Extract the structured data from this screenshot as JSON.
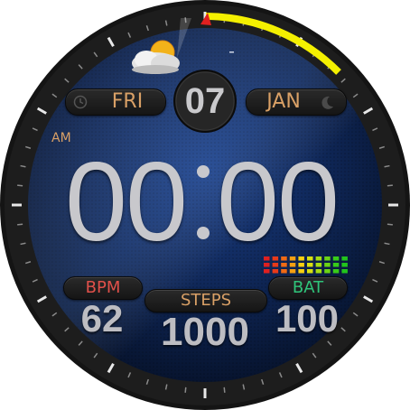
{
  "date": {
    "weekday": "FRI",
    "day": "07",
    "month": "JAN"
  },
  "time": {
    "ampm": "AM",
    "hours": "00",
    "minutes": "00"
  },
  "metrics": {
    "bpm": {
      "label": "BPM",
      "value": "62"
    },
    "steps": {
      "label": "STEPS",
      "value": "1000"
    },
    "battery": {
      "label": "BAT",
      "value": "100"
    }
  },
  "icons": {
    "weather": "partly-cloudy-icon",
    "weekday": "clock-icon",
    "month": "moon-icon"
  },
  "colors": {
    "accent": "#d9a066",
    "bpm": "#e0504a",
    "battery": "#2fc47a",
    "progress_arc": "#f4f000",
    "marker": "#e02020"
  }
}
